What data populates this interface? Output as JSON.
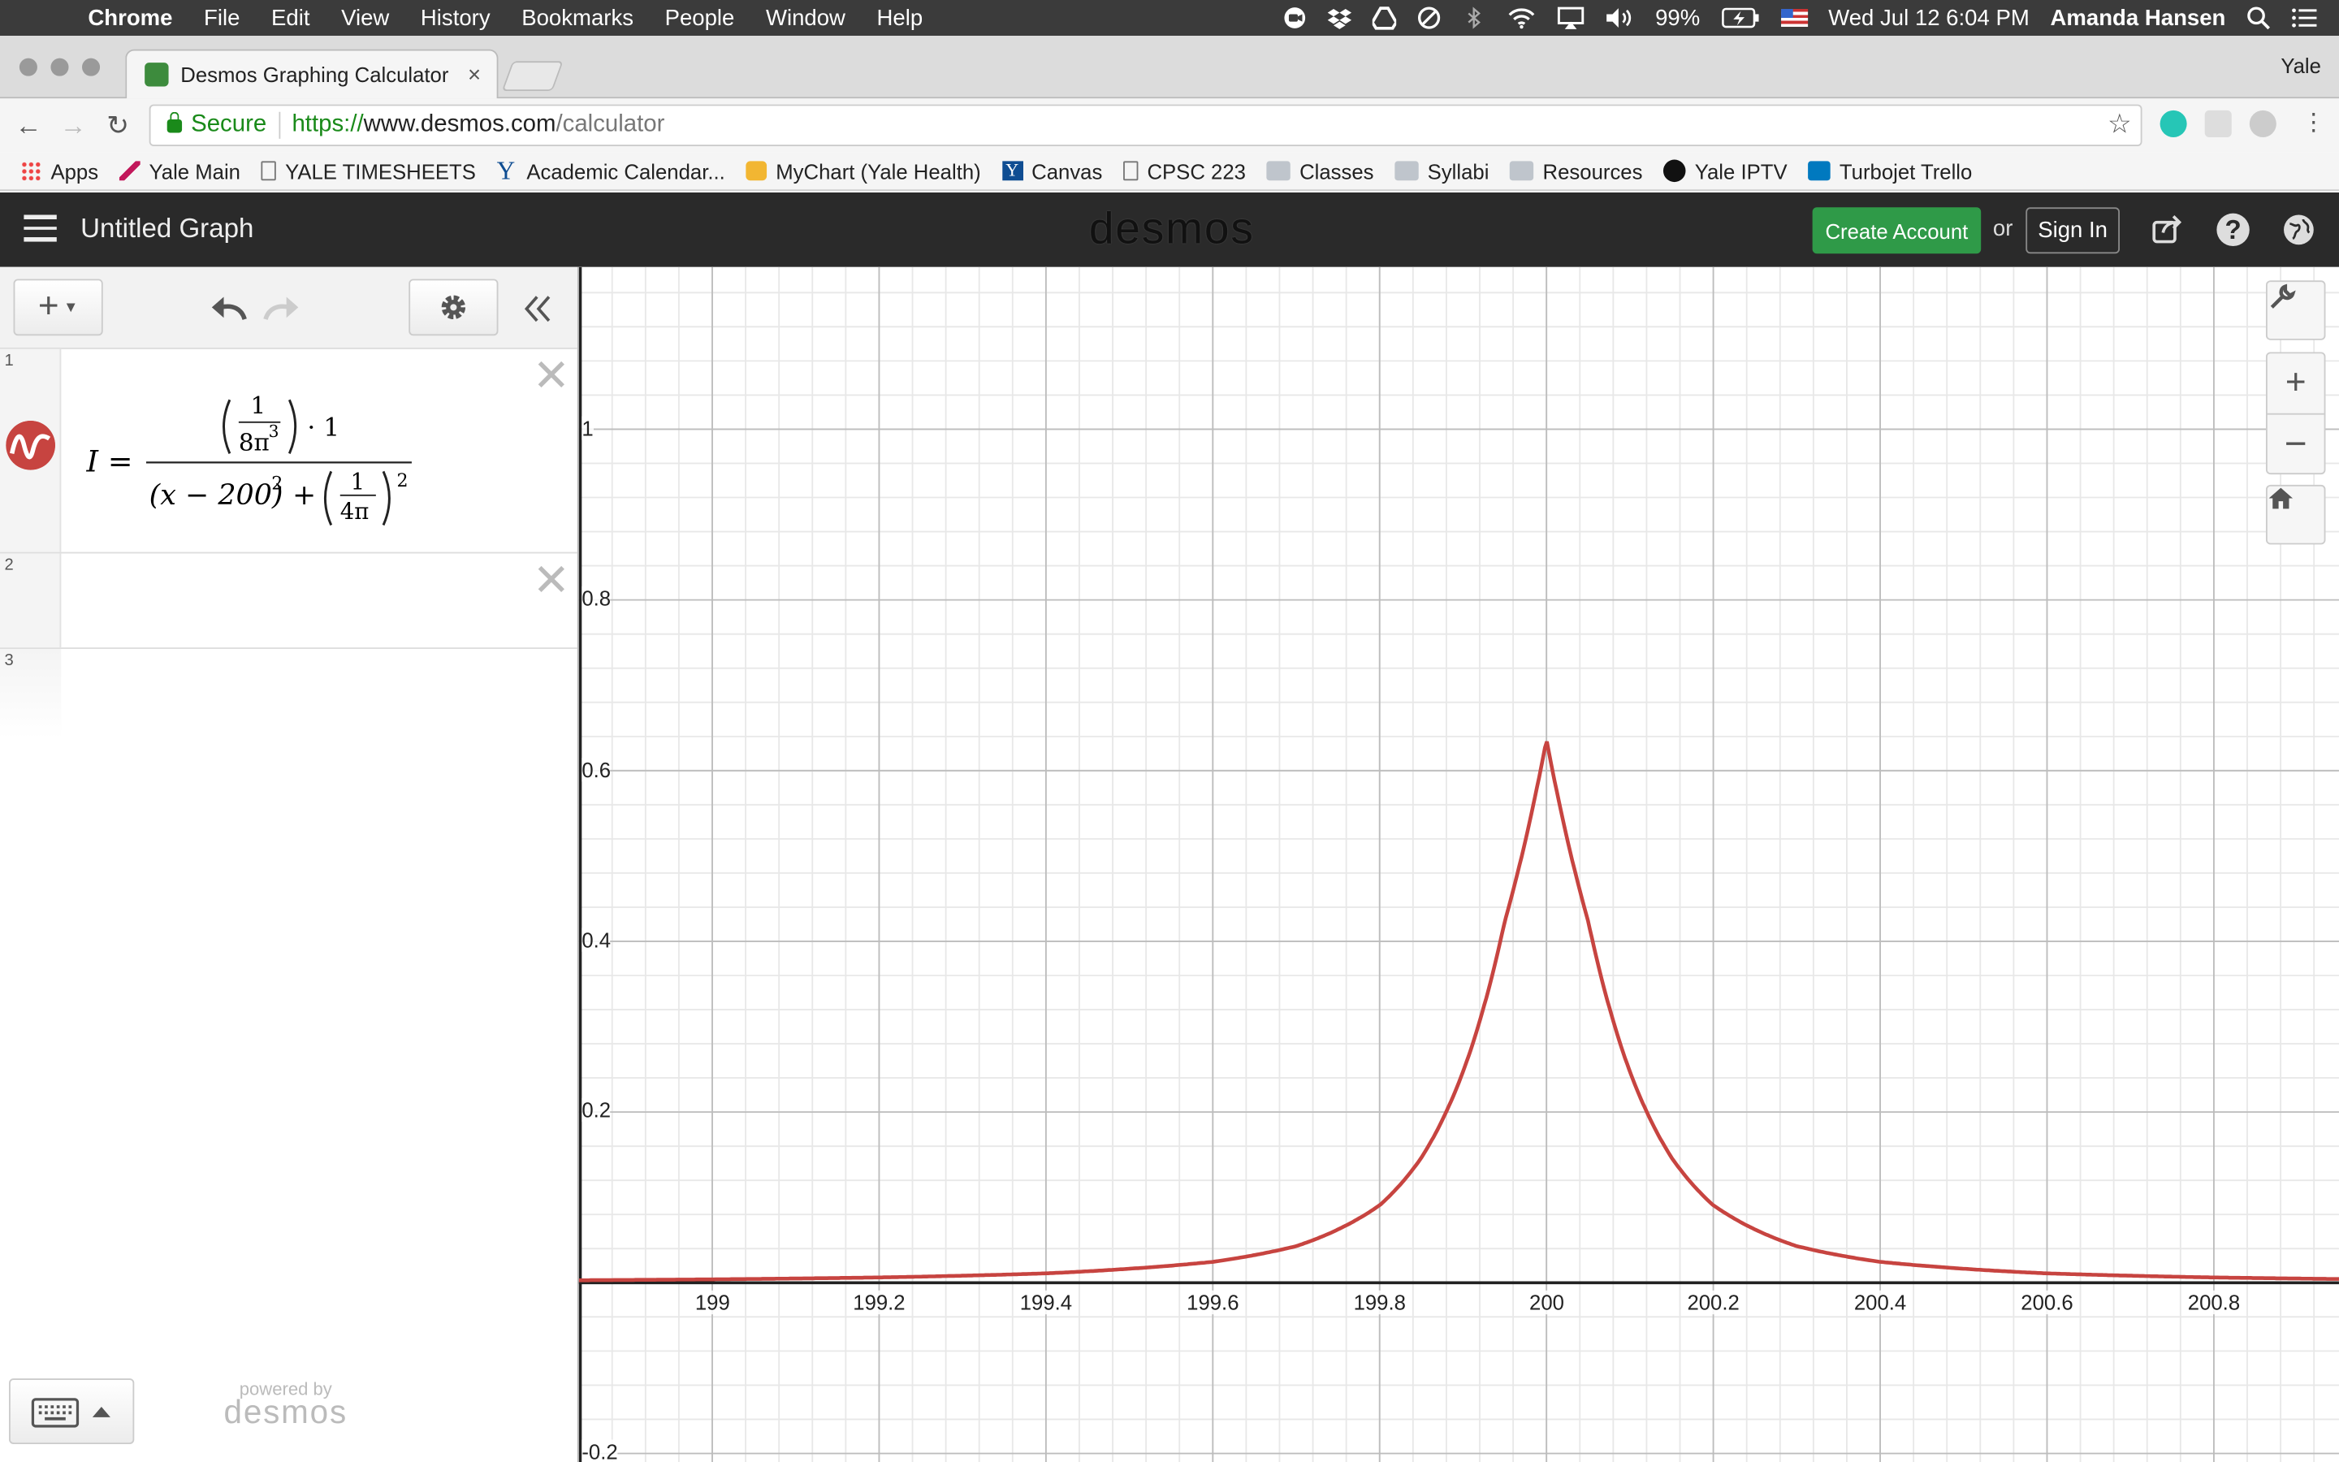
{
  "menubar": {
    "app": "Chrome",
    "items": [
      "File",
      "Edit",
      "View",
      "History",
      "Bookmarks",
      "People",
      "Window",
      "Help"
    ],
    "battery": "99%",
    "datetime": "Wed Jul 12  6:04 PM",
    "user": "Amanda Hansen"
  },
  "browser": {
    "tab_title": "Desmos Graphing Calculator",
    "profile": "Yale",
    "secure_label": "Secure",
    "url_scheme": "https://",
    "url_host": "www.desmos.com",
    "url_path": "/calculator"
  },
  "bookmarks": [
    {
      "label": "Apps",
      "icon": "apps-grid-icon"
    },
    {
      "label": "Yale Main",
      "icon": "bookmark-icon"
    },
    {
      "label": "YALE TIMESHEETS",
      "icon": "page-icon"
    },
    {
      "label": "Academic Calendar...",
      "icon": "yale-y-icon"
    },
    {
      "label": "MyChart (Yale Health)",
      "icon": "mychart-icon"
    },
    {
      "label": "Canvas",
      "icon": "yale-y-icon"
    },
    {
      "label": "CPSC 223",
      "icon": "page-icon"
    },
    {
      "label": "Classes",
      "icon": "folder-icon"
    },
    {
      "label": "Syllabi",
      "icon": "folder-icon"
    },
    {
      "label": "Resources",
      "icon": "folder-icon"
    },
    {
      "label": "Yale IPTV",
      "icon": "play-icon"
    },
    {
      "label": "Turbojet Trello",
      "icon": "trello-icon"
    }
  ],
  "desmos": {
    "graph_title": "Untitled Graph",
    "logo": "desmos",
    "create_account": "Create Account",
    "or": "or",
    "sign_in": "Sign In",
    "powered_by": "powered by",
    "powered_logo": "desmos",
    "expressions": [
      {
        "num": "1",
        "latex": "I=\\frac{\\left(\\frac{1}{8\\pi^3}\\right)\\cdot 1}{(x-200)^2+\\left(\\frac{1}{4\\pi}\\right)^2}",
        "color": "#c74440"
      },
      {
        "num": "2",
        "latex": ""
      },
      {
        "num": "3",
        "latex": ""
      }
    ],
    "formula": {
      "lhs": "I =",
      "one": "1",
      "eight_pi": "8π",
      "cube": "3",
      "dot_one": "· 1",
      "x_minus": "(x − 200)",
      "sq": "2",
      "plus": "+",
      "four_pi": "4π",
      "sq2": "2"
    }
  },
  "chart_data": {
    "type": "line",
    "title": "",
    "xlabel": "",
    "ylabel": "",
    "xlim": [
      198.84,
      200.95
    ],
    "ylim": [
      -0.21,
      1.19
    ],
    "x_ticks": [
      "199",
      "199.2",
      "199.4",
      "199.6",
      "199.8",
      "200",
      "200.2",
      "200.4",
      "200.6",
      "200.8"
    ],
    "y_ticks": [
      "1",
      "0.8",
      "0.6",
      "0.4",
      "0.2",
      "-0.2"
    ],
    "grid": true,
    "series": [
      {
        "color": "#c74440",
        "x": [
          198.84,
          199.0,
          199.2,
          199.4,
          199.6,
          199.7,
          199.8,
          199.85,
          199.9,
          199.95,
          200.0,
          200.05,
          200.1,
          200.15,
          200.2,
          200.3,
          200.4,
          200.6,
          200.8,
          200.95
        ],
        "y": [
          0.0029,
          0.004,
          0.0062,
          0.011,
          0.0245,
          0.0429,
          0.0908,
          0.1465,
          0.2473,
          0.4235,
          0.6366,
          0.4235,
          0.2473,
          0.1465,
          0.0908,
          0.0429,
          0.0245,
          0.011,
          0.0062,
          0.0044
        ]
      }
    ]
  }
}
